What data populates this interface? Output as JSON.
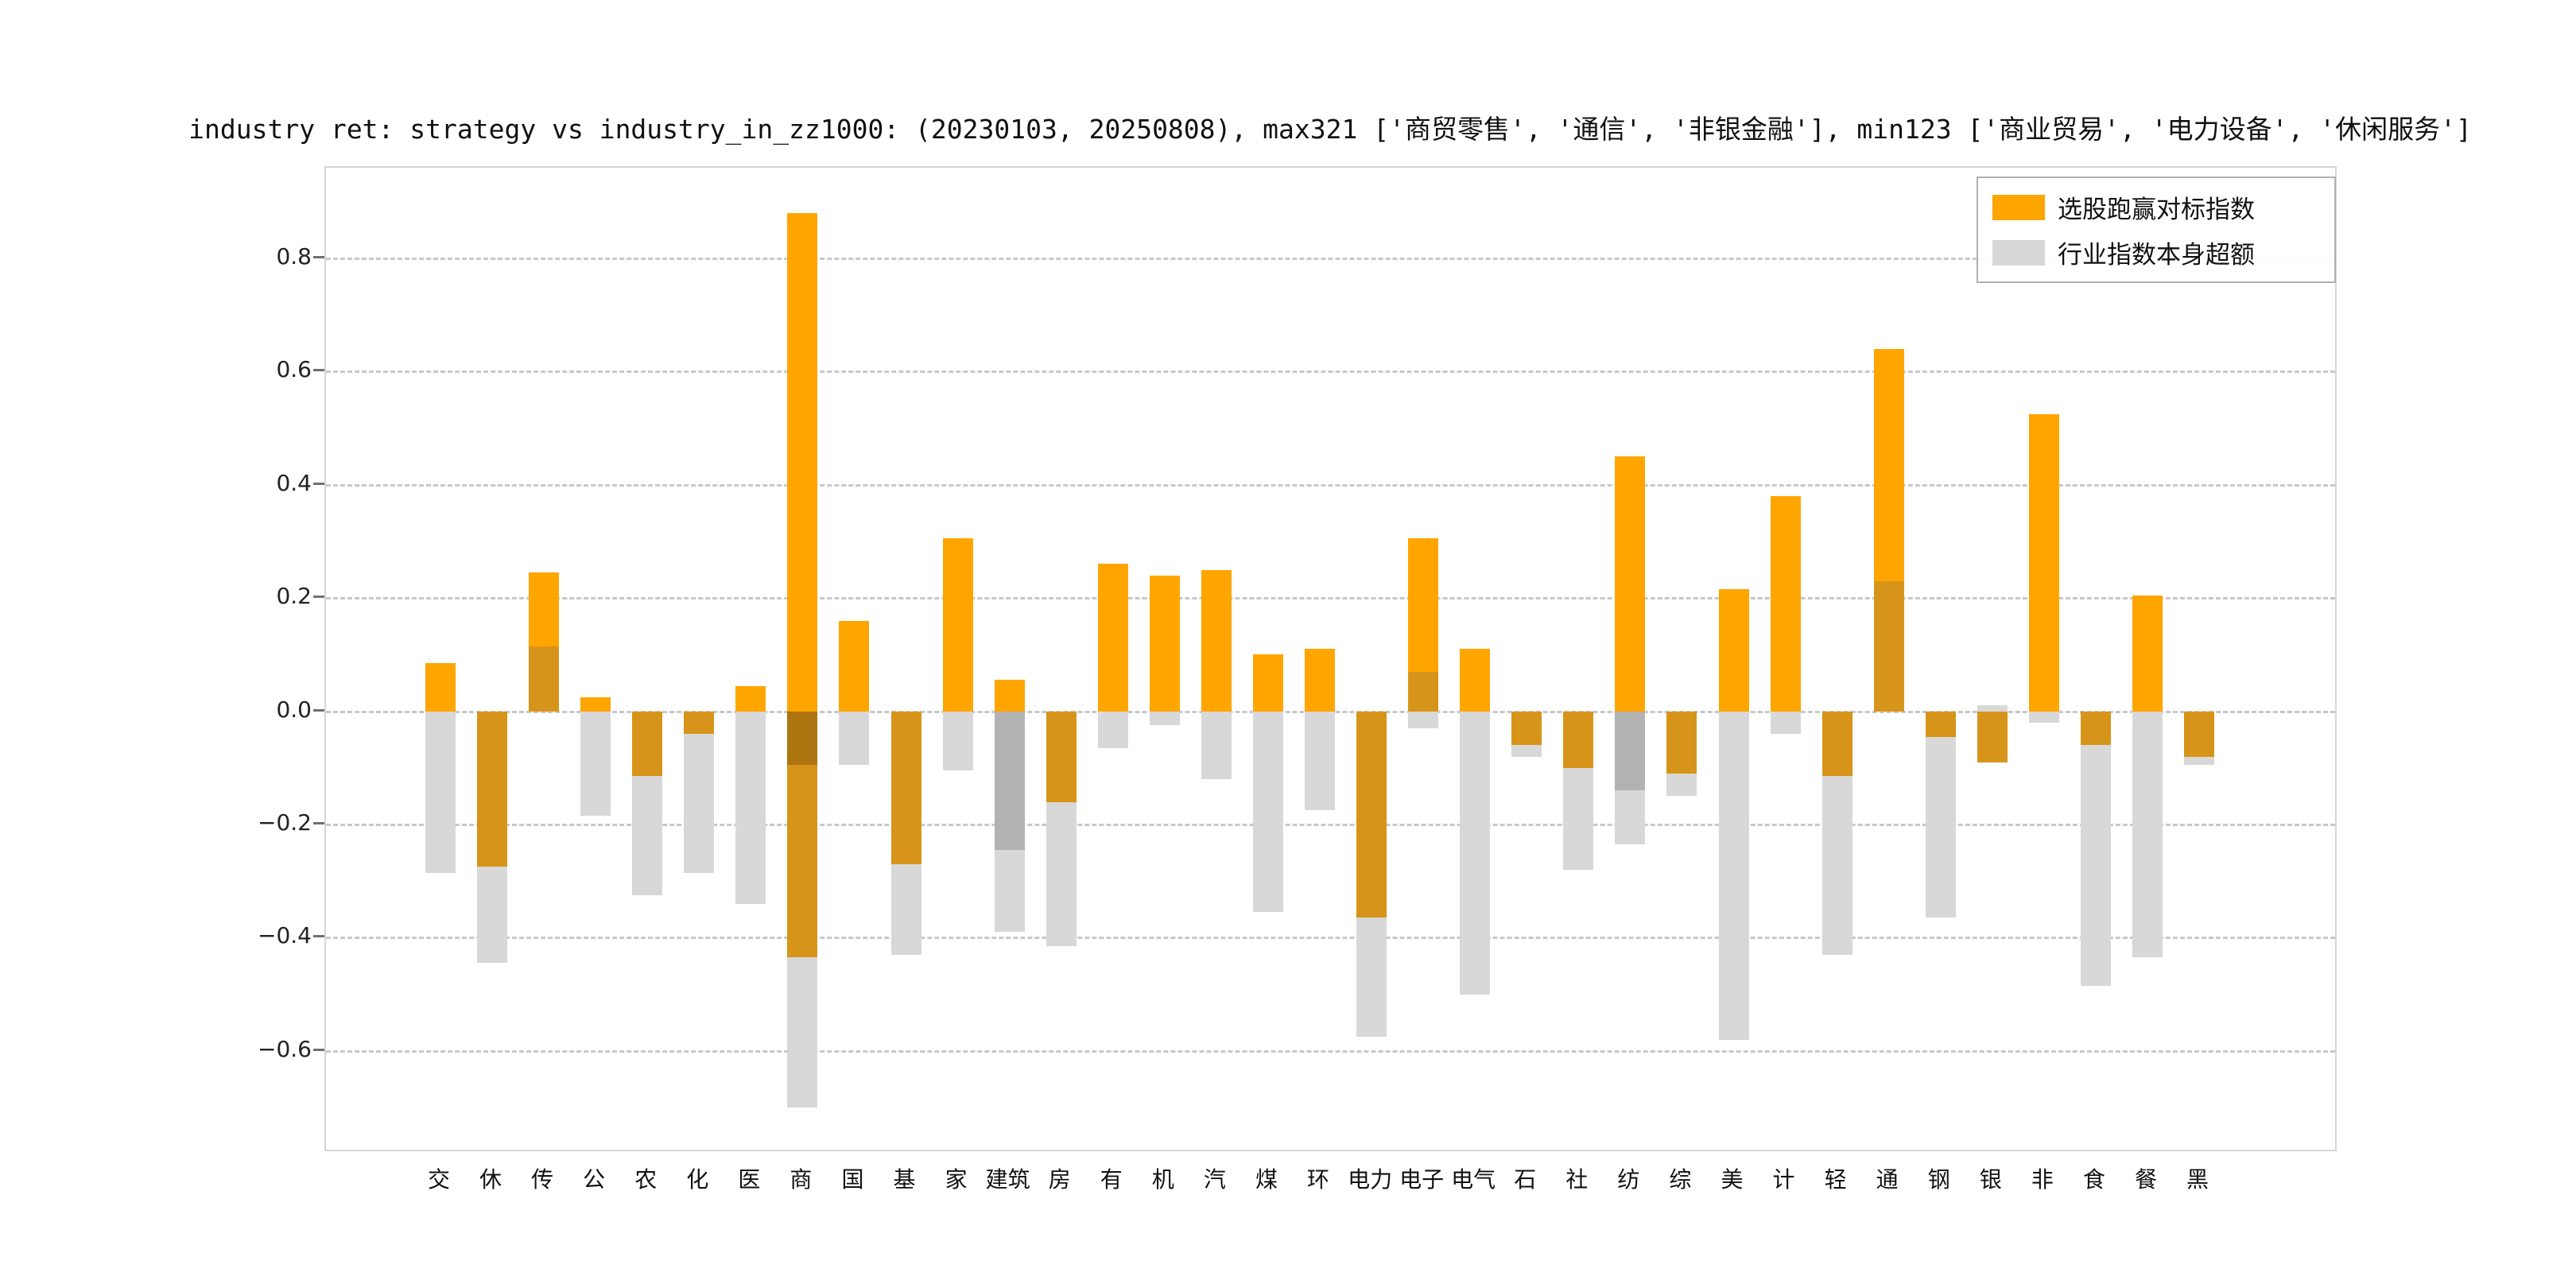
{
  "chart_data": {
    "type": "bar",
    "title": "industry ret: strategy vs industry_in_zz1000: (20230103, 20250808), max321 ['商贸零售', '通信', '非银金融'], min123 ['商业贸易', '电力设备', '休闲服务']",
    "legend": {
      "position": "upper right",
      "items": [
        {
          "label": "选股跑赢对标指数",
          "color": "#FFA500"
        },
        {
          "label": "行业指数本身超额",
          "color": "#D8D8D8"
        }
      ]
    },
    "y_axis": {
      "ticks": [
        0.8,
        0.6,
        0.4,
        0.2,
        0,
        -0.2,
        -0.4,
        -0.6
      ],
      "tick_labels": [
        "0.8",
        "0.6",
        "0.4",
        "0.2",
        "0.0",
        "−0.2",
        "−0.4",
        "−0.6"
      ],
      "min": -0.78,
      "max": 0.96,
      "grid": "dashed"
    },
    "series_names": {
      "orange": "选股跑赢对标指数",
      "gray": "行业指数本身超额"
    },
    "bars": [
      {
        "label": "交",
        "orange": 0.085,
        "gray": -0.285
      },
      {
        "label": "休",
        "orange": -0.275,
        "gray": -0.445
      },
      {
        "label": "传",
        "orange": 0.245,
        "gray": 0.115
      },
      {
        "label": "公",
        "orange": 0.025,
        "gray": -0.185
      },
      {
        "label": "农",
        "orange": -0.115,
        "gray": -0.325
      },
      {
        "label": "化",
        "orange": -0.04,
        "gray": -0.285
      },
      {
        "label": "医",
        "orange": 0.045,
        "gray": -0.34
      },
      {
        "label": "商",
        "orange": 0.88,
        "orange2": -0.435,
        "gray": -0.7,
        "gray2": -0.095
      },
      {
        "label": "国",
        "orange": 0.16,
        "gray": -0.095
      },
      {
        "label": "基",
        "orange": -0.27,
        "gray": -0.43
      },
      {
        "label": "家",
        "orange": 0.305,
        "gray": -0.105
      },
      {
        "label": "建筑",
        "orange": 0.055,
        "gray": -0.39,
        "gray2": -0.245
      },
      {
        "label": "房",
        "orange": -0.16,
        "gray": -0.415
      },
      {
        "label": "有",
        "orange": 0.26,
        "gray": -0.065
      },
      {
        "label": "机",
        "orange": 0.24,
        "gray": -0.025
      },
      {
        "label": "汽",
        "orange": 0.25,
        "gray": -0.12
      },
      {
        "label": "煤",
        "orange": 0.1,
        "gray": -0.355
      },
      {
        "label": "环",
        "orange": 0.11,
        "gray": -0.175
      },
      {
        "label": "电力",
        "orange": -0.365,
        "gray": -0.575
      },
      {
        "label": "电子",
        "orange": 0.305,
        "gray": 0.07,
        "gray2": -0.03
      },
      {
        "label": "电气",
        "orange": 0.11,
        "gray": -0.5
      },
      {
        "label": "石",
        "orange": -0.06,
        "gray": -0.08
      },
      {
        "label": "社",
        "orange": -0.1,
        "gray": -0.28
      },
      {
        "label": "纺",
        "orange": 0.45,
        "gray": -0.235,
        "gray2": -0.14
      },
      {
        "label": "综",
        "orange": -0.11,
        "gray": -0.15
      },
      {
        "label": "美",
        "orange": 0.215,
        "gray": -0.58
      },
      {
        "label": "计",
        "orange": 0.38,
        "gray": -0.04
      },
      {
        "label": "轻",
        "orange": -0.115,
        "gray": -0.43
      },
      {
        "label": "通",
        "orange": 0.64,
        "gray": 0.23
      },
      {
        "label": "钢",
        "orange": -0.045,
        "gray": -0.365
      },
      {
        "label": "银",
        "orange": -0.09,
        "gray": 0.01,
        "gray2": -0.09
      },
      {
        "label": "非",
        "orange": 0.525,
        "gray": -0.02
      },
      {
        "label": "食",
        "orange": -0.06,
        "gray": -0.485
      },
      {
        "label": "餐",
        "orange": 0.205,
        "gray": -0.435
      },
      {
        "label": "黑",
        "orange": -0.08,
        "gray": -0.095
      }
    ],
    "colors": {
      "orange": "#FFA500",
      "gray": "#D8D8D8",
      "orange_on_gray": "#D7941A",
      "gray_on_gray": "#B2B2B2",
      "orange_on_gray_dark": "#AD7410",
      "grid": "#C8C8C8"
    }
  }
}
